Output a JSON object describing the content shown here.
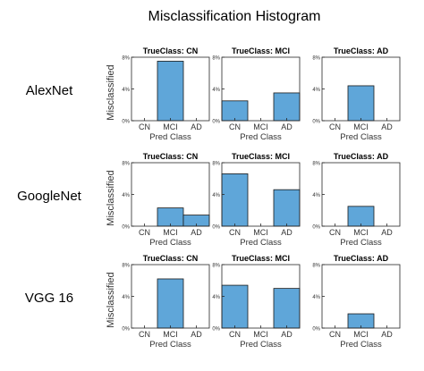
{
  "title": "Misclassification Histogram",
  "row_labels": [
    "AlexNet",
    "GoogleNet",
    "VGG 16"
  ],
  "bar_color": "#5fa6d9",
  "chart_data": {
    "type": "bar",
    "title": "Misclassification Histogram",
    "categories": [
      "CN",
      "MCI",
      "AD"
    ],
    "xlabel": "Pred Class",
    "ylabel": "Misclassified",
    "ylim": [
      0,
      8
    ],
    "yticks": [
      "0%",
      "4%",
      "8%"
    ],
    "panels": [
      {
        "model": "AlexNet",
        "title": "TrueClass: CN",
        "values": [
          0,
          7.5,
          0
        ]
      },
      {
        "model": "AlexNet",
        "title": "TrueClass: MCI",
        "values": [
          2.5,
          0,
          3.5
        ]
      },
      {
        "model": "AlexNet",
        "title": "TrueClass: AD",
        "values": [
          0,
          4.4,
          0
        ]
      },
      {
        "model": "GoogleNet",
        "title": "TrueClass: CN",
        "values": [
          0,
          2.3,
          1.4
        ]
      },
      {
        "model": "GoogleNet",
        "title": "TrueClass: MCI",
        "values": [
          6.6,
          0,
          4.6
        ]
      },
      {
        "model": "GoogleNet",
        "title": "TrueClass: AD",
        "values": [
          0,
          2.5,
          0
        ]
      },
      {
        "model": "VGG 16",
        "title": "TrueClass: CN",
        "values": [
          0,
          6.2,
          0
        ]
      },
      {
        "model": "VGG 16",
        "title": "TrueClass: MCI",
        "values": [
          5.4,
          0,
          5.0
        ]
      },
      {
        "model": "VGG 16",
        "title": "TrueClass: AD",
        "values": [
          0,
          1.8,
          0
        ]
      }
    ]
  }
}
